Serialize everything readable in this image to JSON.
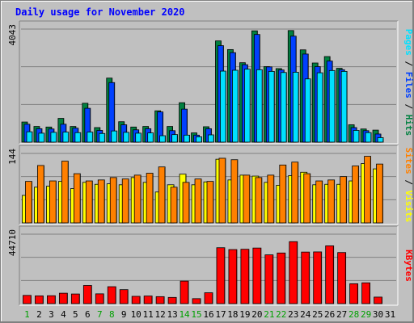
{
  "window": {
    "title": "Daily usage for November 2020"
  },
  "colors": {
    "background": "#c0c0c0",
    "panel": "#c0c0c0",
    "hits": "#008040",
    "files": "#0040ff",
    "pages": "#00e0ff",
    "visits": "#ffff00",
    "sites": "#ff8000",
    "kbytes": "#ff0000",
    "weekend_tick": "#00a000",
    "weekday_tick": "#000000"
  },
  "chart_data": [
    {
      "type": "bar",
      "panel": "requests",
      "categories": [
        "1",
        "2",
        "3",
        "4",
        "5",
        "6",
        "7",
        "8",
        "9",
        "10",
        "11",
        "12",
        "13",
        "14",
        "15",
        "16",
        "17",
        "18",
        "19",
        "20",
        "21",
        "22",
        "23",
        "24",
        "25",
        "26",
        "27",
        "28",
        "29",
        "30",
        "31"
      ],
      "ymax_label": "4043",
      "ylim": [
        0,
        4043
      ],
      "legend_labels": [
        "Pages",
        "Files",
        "Hits"
      ],
      "legend_separator": " / ",
      "series": [
        {
          "name": "Hits",
          "values": [
            720,
            560,
            540,
            850,
            560,
            1390,
            520,
            2290,
            730,
            540,
            560,
            1120,
            560,
            1410,
            330,
            550,
            3620,
            3310,
            2840,
            3980,
            2700,
            2630,
            3990,
            3300,
            2830,
            3060,
            2640,
            620,
            470,
            430,
            0
          ]
        },
        {
          "name": "Files",
          "values": [
            640,
            480,
            470,
            640,
            500,
            1210,
            420,
            2130,
            620,
            440,
            480,
            1080,
            410,
            1180,
            250,
            480,
            3450,
            3200,
            2770,
            3850,
            2690,
            2580,
            3790,
            3150,
            2700,
            2900,
            2590,
            520,
            410,
            290,
            0
          ]
        },
        {
          "name": "Pages",
          "values": [
            370,
            320,
            350,
            360,
            340,
            360,
            310,
            400,
            350,
            320,
            330,
            230,
            270,
            250,
            190,
            260,
            2540,
            2570,
            2610,
            2590,
            2530,
            2490,
            2500,
            2260,
            2480,
            2560,
            2530,
            420,
            340,
            160,
            0
          ]
        }
      ]
    },
    {
      "type": "bar",
      "panel": "visitors",
      "categories": [
        "1",
        "2",
        "3",
        "4",
        "5",
        "6",
        "7",
        "8",
        "9",
        "10",
        "11",
        "12",
        "13",
        "14",
        "15",
        "16",
        "17",
        "18",
        "19",
        "20",
        "21",
        "22",
        "23",
        "24",
        "25",
        "26",
        "27",
        "28",
        "29",
        "30",
        "31"
      ],
      "ymax_label": "144",
      "ylim": [
        0,
        144
      ],
      "legend_labels": [
        "Sites",
        "Visits"
      ],
      "legend_separator": " / ",
      "series": [
        {
          "name": "Visits",
          "values": [
            57,
            74,
            76,
            86,
            71,
            84,
            80,
            81,
            79,
            94,
            84,
            64,
            79,
            101,
            79,
            85,
            132,
            89,
            99,
            97,
            84,
            78,
            98,
            105,
            79,
            80,
            80,
            87,
            123,
            112,
            0
          ]
        },
        {
          "name": "Sites",
          "values": [
            86,
            119,
            87,
            128,
            102,
            87,
            89,
            94,
            91,
            99,
            103,
            116,
            74,
            84,
            91,
            86,
            134,
            131,
            99,
            94,
            99,
            120,
            126,
            102,
            87,
            89,
            96,
            118,
            138,
            122,
            0
          ]
        }
      ]
    },
    {
      "type": "bar",
      "panel": "volume",
      "categories": [
        "1",
        "2",
        "3",
        "4",
        "5",
        "6",
        "7",
        "8",
        "9",
        "10",
        "11",
        "12",
        "13",
        "14",
        "15",
        "16",
        "17",
        "18",
        "19",
        "20",
        "21",
        "22",
        "23",
        "24",
        "25",
        "26",
        "27",
        "28",
        "29",
        "30",
        "31"
      ],
      "ymax_label": "44710",
      "ylim": [
        0,
        44710
      ],
      "legend_labels": [
        "KBytes"
      ],
      "legend_separator": "",
      "series": [
        {
          "name": "KBytes",
          "values": [
            5300,
            5000,
            5100,
            6700,
            6200,
            11700,
            6300,
            10900,
            9000,
            4700,
            4900,
            4500,
            4000,
            14500,
            3200,
            7000,
            36000,
            34800,
            35000,
            35800,
            31400,
            32600,
            39900,
            33200,
            33300,
            37200,
            32900,
            12800,
            13400,
            4200,
            0
          ]
        }
      ]
    }
  ],
  "x_axis": {
    "ticks": [
      {
        "label": "1",
        "weekend": true
      },
      {
        "label": "2",
        "weekend": false
      },
      {
        "label": "3",
        "weekend": false
      },
      {
        "label": "4",
        "weekend": false
      },
      {
        "label": "5",
        "weekend": false
      },
      {
        "label": "6",
        "weekend": false
      },
      {
        "label": "7",
        "weekend": true
      },
      {
        "label": "8",
        "weekend": true
      },
      {
        "label": "9",
        "weekend": false
      },
      {
        "label": "10",
        "weekend": false
      },
      {
        "label": "11",
        "weekend": false
      },
      {
        "label": "12",
        "weekend": false
      },
      {
        "label": "13",
        "weekend": false
      },
      {
        "label": "14",
        "weekend": true
      },
      {
        "label": "15",
        "weekend": true
      },
      {
        "label": "16",
        "weekend": false
      },
      {
        "label": "17",
        "weekend": false
      },
      {
        "label": "18",
        "weekend": false
      },
      {
        "label": "19",
        "weekend": false
      },
      {
        "label": "20",
        "weekend": false
      },
      {
        "label": "21",
        "weekend": true
      },
      {
        "label": "22",
        "weekend": true
      },
      {
        "label": "23",
        "weekend": false
      },
      {
        "label": "24",
        "weekend": false
      },
      {
        "label": "25",
        "weekend": false
      },
      {
        "label": "26",
        "weekend": false
      },
      {
        "label": "27",
        "weekend": false
      },
      {
        "label": "28",
        "weekend": true
      },
      {
        "label": "29",
        "weekend": true
      },
      {
        "label": "30",
        "weekend": false
      },
      {
        "label": "31",
        "weekend": false
      }
    ]
  }
}
